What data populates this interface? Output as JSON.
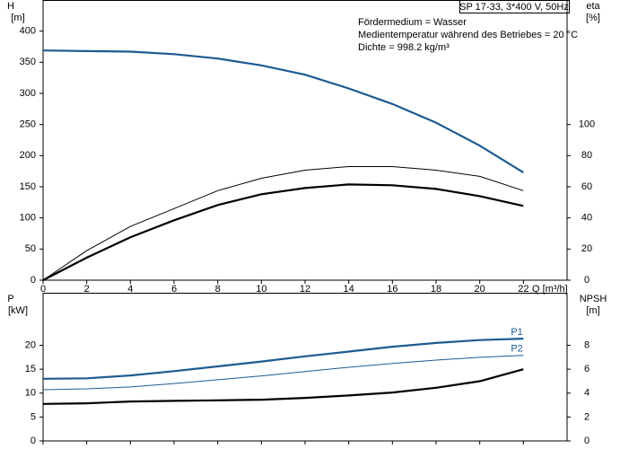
{
  "chart_data": [
    {
      "type": "line",
      "title": "SP 17-33, 3*400 V, 50Hz",
      "annotations": [
        "Fördermedium = Wasser",
        "Medientemperatur während des Betriebes = 20 °C",
        "Dichte = 998.2 kg/m³"
      ],
      "y_label": [
        "H",
        "[m]"
      ],
      "y2_label": [
        "eta",
        "[%]"
      ],
      "x_label": "Q [m³/h]",
      "x": [
        0,
        2,
        4,
        6,
        8,
        10,
        12,
        14,
        16,
        18,
        20,
        22
      ],
      "xlim": [
        0,
        24
      ],
      "xticks": [
        0,
        2,
        4,
        6,
        8,
        10,
        12,
        14,
        16,
        18,
        20,
        22
      ],
      "ylim": [
        0,
        450
      ],
      "yticks": [
        0,
        50,
        100,
        150,
        200,
        250,
        300,
        350,
        400
      ],
      "y2lim": [
        0,
        180
      ],
      "y2ticks": [
        0,
        20,
        40,
        60,
        80,
        100
      ],
      "series": [
        {
          "color": "#1d5a92",
          "width": 2.2,
          "values": [
            369,
            368,
            367,
            363,
            356,
            345,
            330,
            308,
            283,
            253,
            216,
            173
          ]
        },
        {
          "color": "#000000",
          "width": 1,
          "axis": "y2",
          "values": [
            0,
            19,
            34.5,
            46,
            57.5,
            65.5,
            70.7,
            73,
            73,
            70.7,
            66.7,
            57.5
          ]
        },
        {
          "color": "#000000",
          "width": 2.2,
          "axis": "y2",
          "values": [
            0,
            14.5,
            27.6,
            38.5,
            48.3,
            55.2,
            59.2,
            61.5,
            61,
            58.6,
            54,
            47.7
          ]
        }
      ]
    },
    {
      "type": "line",
      "y_label": [
        "P",
        "[kW]"
      ],
      "y2_label": [
        "NPSH",
        "[m]"
      ],
      "x": [
        0,
        2,
        4,
        6,
        8,
        10,
        12,
        14,
        16,
        18,
        20,
        22
      ],
      "xlim": [
        0,
        24
      ],
      "xticks": [
        0,
        2,
        4,
        6,
        8,
        10,
        12,
        14,
        16,
        18,
        20,
        22
      ],
      "ylim": [
        0,
        31
      ],
      "yticks": [
        0,
        5,
        10,
        15,
        20
      ],
      "y2lim": [
        0,
        12.4
      ],
      "y2ticks": [
        0,
        2,
        4,
        6,
        8
      ],
      "series": [
        {
          "name": "P1",
          "color": "#1d5a92",
          "width": 2.2,
          "values": [
            13,
            13.1,
            13.7,
            14.6,
            15.6,
            16.6,
            17.7,
            18.7,
            19.7,
            20.5,
            21.1,
            21.4
          ]
        },
        {
          "name": "P2",
          "color": "#1d5a92",
          "width": 1,
          "values": [
            10.7,
            10.9,
            11.3,
            12,
            12.8,
            13.6,
            14.5,
            15.4,
            16.2,
            16.9,
            17.5,
            17.9
          ]
        },
        {
          "color": "#000000",
          "width": 2.2,
          "axis": "y2",
          "values": [
            3.1,
            3.15,
            3.3,
            3.35,
            3.4,
            3.45,
            3.6,
            3.8,
            4.05,
            4.45,
            5.0,
            6.0
          ]
        }
      ]
    }
  ]
}
